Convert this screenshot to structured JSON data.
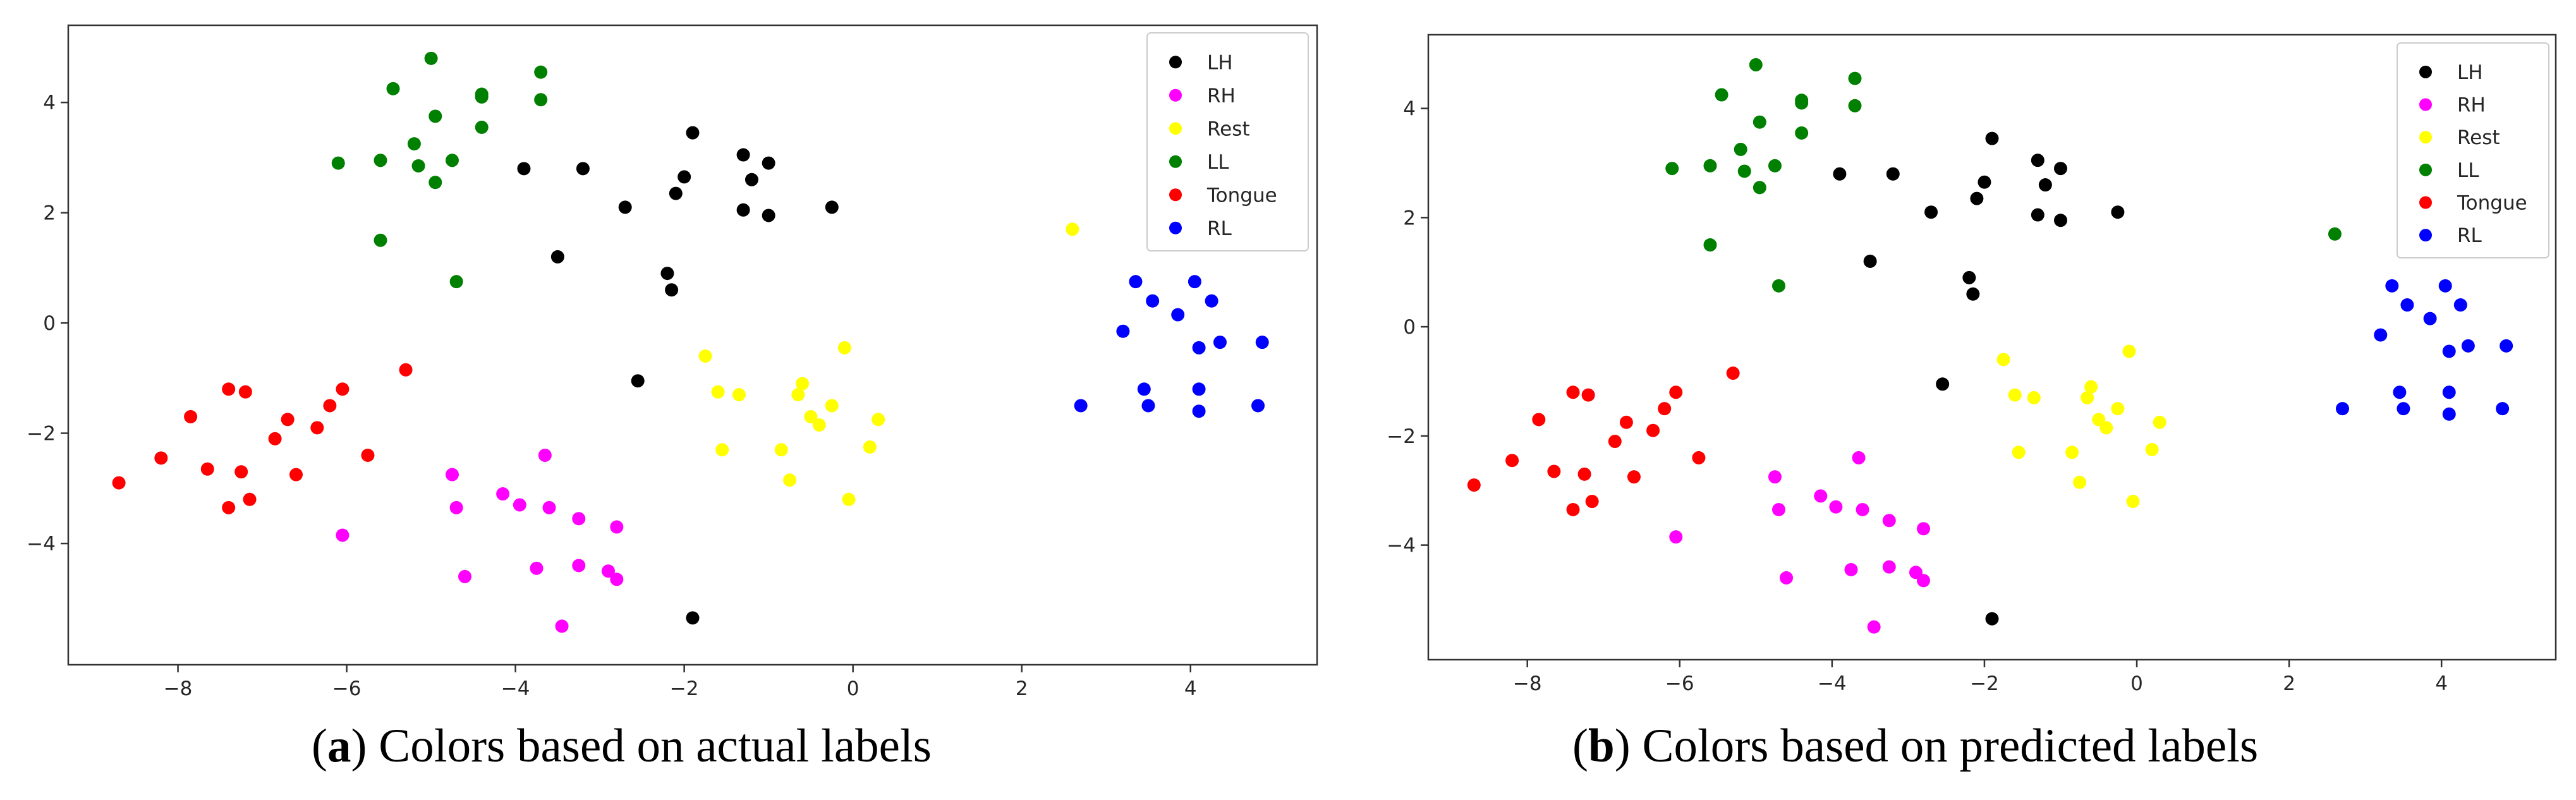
{
  "classes": [
    {
      "name": "LH",
      "color": "#000000"
    },
    {
      "name": "RH",
      "color": "#ff00ff"
    },
    {
      "name": "Rest",
      "color": "#ffff00"
    },
    {
      "name": "LL",
      "color": "#008000"
    },
    {
      "name": "Tongue",
      "color": "#ff0000"
    },
    {
      "name": "RL",
      "color": "#0000ff"
    }
  ],
  "captions": [
    {
      "letter": "a",
      "text": "Colors based on actual labels"
    },
    {
      "letter": "b",
      "text": "Colors based on predicted labels"
    }
  ],
  "chart_data": [
    {
      "type": "scatter",
      "title": "",
      "xlabel": "",
      "ylabel": "",
      "xlim": [
        -9.3,
        5.5
      ],
      "ylim": [
        -6.2,
        5.4
      ],
      "xticks": [
        -8,
        -6,
        -4,
        -2,
        0,
        2,
        4
      ],
      "yticks": [
        -4,
        -2,
        0,
        2,
        4
      ],
      "legend": "top-right",
      "series": [
        {
          "name": "LH",
          "color": "#000000",
          "points": [
            [
              -3.9,
              2.8
            ],
            [
              -3.2,
              2.8
            ],
            [
              -2.7,
              2.1
            ],
            [
              -1.9,
              3.45
            ],
            [
              -2.0,
              2.65
            ],
            [
              -2.1,
              2.35
            ],
            [
              -1.3,
              3.05
            ],
            [
              -1.2,
              2.6
            ],
            [
              -1.3,
              2.05
            ],
            [
              -1.0,
              2.9
            ],
            [
              -1.0,
              1.95
            ],
            [
              -0.25,
              2.1
            ],
            [
              -3.5,
              1.2
            ],
            [
              -2.2,
              0.9
            ],
            [
              -2.15,
              0.6
            ],
            [
              -2.55,
              -1.05
            ],
            [
              -1.9,
              -5.35
            ]
          ]
        },
        {
          "name": "RH",
          "color": "#ff00ff",
          "points": [
            [
              -6.05,
              -3.85
            ],
            [
              -4.75,
              -2.75
            ],
            [
              -4.7,
              -3.35
            ],
            [
              -4.6,
              -4.6
            ],
            [
              -4.15,
              -3.1
            ],
            [
              -3.95,
              -3.3
            ],
            [
              -3.75,
              -4.45
            ],
            [
              -3.65,
              -2.4
            ],
            [
              -3.6,
              -3.35
            ],
            [
              -3.25,
              -3.55
            ],
            [
              -3.25,
              -4.4
            ],
            [
              -3.45,
              -5.5
            ],
            [
              -2.8,
              -3.7
            ],
            [
              -2.9,
              -4.5
            ],
            [
              -2.8,
              -4.65
            ]
          ]
        },
        {
          "name": "Rest",
          "color": "#ffff00",
          "points": [
            [
              -1.75,
              -0.6
            ],
            [
              -1.6,
              -1.25
            ],
            [
              -1.55,
              -2.3
            ],
            [
              -1.35,
              -1.3
            ],
            [
              -0.85,
              -2.3
            ],
            [
              -0.75,
              -2.85
            ],
            [
              -0.65,
              -1.3
            ],
            [
              -0.6,
              -1.1
            ],
            [
              -0.5,
              -1.7
            ],
            [
              -0.4,
              -1.85
            ],
            [
              -0.25,
              -1.5
            ],
            [
              -0.1,
              -0.45
            ],
            [
              -0.05,
              -3.2
            ],
            [
              0.2,
              -2.25
            ],
            [
              0.3,
              -1.75
            ],
            [
              2.6,
              1.7
            ]
          ]
        },
        {
          "name": "LL",
          "color": "#008000",
          "points": [
            [
              -6.1,
              2.9
            ],
            [
              -5.6,
              2.95
            ],
            [
              -5.6,
              1.5
            ],
            [
              -5.45,
              4.25
            ],
            [
              -5.2,
              3.25
            ],
            [
              -5.15,
              2.85
            ],
            [
              -5.0,
              4.8
            ],
            [
              -4.95,
              3.75
            ],
            [
              -4.95,
              2.55
            ],
            [
              -4.75,
              2.95
            ],
            [
              -4.7,
              0.75
            ],
            [
              -4.4,
              4.15
            ],
            [
              -4.4,
              4.1
            ],
            [
              -4.4,
              3.55
            ],
            [
              -3.7,
              4.55
            ],
            [
              -3.7,
              4.05
            ]
          ]
        },
        {
          "name": "Tongue",
          "color": "#ff0000",
          "points": [
            [
              -8.7,
              -2.9
            ],
            [
              -8.2,
              -2.45
            ],
            [
              -7.85,
              -1.7
            ],
            [
              -7.65,
              -2.65
            ],
            [
              -7.4,
              -1.2
            ],
            [
              -7.4,
              -3.35
            ],
            [
              -7.25,
              -2.7
            ],
            [
              -7.2,
              -1.25
            ],
            [
              -7.15,
              -3.2
            ],
            [
              -6.85,
              -2.1
            ],
            [
              -6.7,
              -1.75
            ],
            [
              -6.6,
              -2.75
            ],
            [
              -6.35,
              -1.9
            ],
            [
              -6.2,
              -1.5
            ],
            [
              -6.05,
              -1.2
            ],
            [
              -5.75,
              -2.4
            ],
            [
              -5.3,
              -0.85
            ]
          ]
        },
        {
          "name": "RL",
          "color": "#0000ff",
          "points": [
            [
              2.7,
              -1.5
            ],
            [
              3.2,
              -0.15
            ],
            [
              3.35,
              0.75
            ],
            [
              3.45,
              -1.2
            ],
            [
              3.5,
              -1.5
            ],
            [
              3.55,
              0.4
            ],
            [
              3.85,
              0.15
            ],
            [
              4.05,
              0.75
            ],
            [
              4.1,
              -0.45
            ],
            [
              4.1,
              -1.2
            ],
            [
              4.1,
              -1.6
            ],
            [
              4.25,
              0.4
            ],
            [
              4.35,
              -0.35
            ],
            [
              4.8,
              -1.5
            ],
            [
              4.85,
              -0.35
            ]
          ]
        }
      ]
    },
    {
      "type": "scatter",
      "title": "",
      "xlabel": "",
      "ylabel": "",
      "xlim": [
        -9.3,
        5.5
      ],
      "ylim": [
        -6.1,
        5.35
      ],
      "xticks": [
        -8,
        -6,
        -4,
        -2,
        0,
        2,
        4
      ],
      "yticks": [
        -4,
        -2,
        0,
        2,
        4
      ],
      "legend": "top-right",
      "series": [
        {
          "name": "LH",
          "color": "#000000",
          "points": [
            [
              -3.9,
              2.8
            ],
            [
              -3.2,
              2.8
            ],
            [
              -2.7,
              2.1
            ],
            [
              -1.9,
              3.45
            ],
            [
              -2.0,
              2.65
            ],
            [
              -2.1,
              2.35
            ],
            [
              -1.3,
              3.05
            ],
            [
              -1.2,
              2.6
            ],
            [
              -1.3,
              2.05
            ],
            [
              -1.0,
              2.9
            ],
            [
              -1.0,
              1.95
            ],
            [
              -0.25,
              2.1
            ],
            [
              -3.5,
              1.2
            ],
            [
              -2.2,
              0.9
            ],
            [
              -2.15,
              0.6
            ],
            [
              -2.55,
              -1.05
            ],
            [
              -1.9,
              -5.35
            ]
          ]
        },
        {
          "name": "RH",
          "color": "#ff00ff",
          "points": [
            [
              -6.05,
              -3.85
            ],
            [
              -4.75,
              -2.75
            ],
            [
              -4.7,
              -3.35
            ],
            [
              -4.6,
              -4.6
            ],
            [
              -4.15,
              -3.1
            ],
            [
              -3.95,
              -3.3
            ],
            [
              -3.75,
              -4.45
            ],
            [
              -3.65,
              -2.4
            ],
            [
              -3.6,
              -3.35
            ],
            [
              -3.25,
              -3.55
            ],
            [
              -3.25,
              -4.4
            ],
            [
              -3.45,
              -5.5
            ],
            [
              -2.8,
              -3.7
            ],
            [
              -2.9,
              -4.5
            ],
            [
              -2.8,
              -4.65
            ]
          ]
        },
        {
          "name": "Rest",
          "color": "#ffff00",
          "points": [
            [
              -1.75,
              -0.6
            ],
            [
              -1.6,
              -1.25
            ],
            [
              -1.55,
              -2.3
            ],
            [
              -1.35,
              -1.3
            ],
            [
              -0.85,
              -2.3
            ],
            [
              -0.75,
              -2.85
            ],
            [
              -0.65,
              -1.3
            ],
            [
              -0.6,
              -1.1
            ],
            [
              -0.5,
              -1.7
            ],
            [
              -0.4,
              -1.85
            ],
            [
              -0.25,
              -1.5
            ],
            [
              -0.1,
              -0.45
            ],
            [
              -0.05,
              -3.2
            ],
            [
              0.2,
              -2.25
            ],
            [
              0.3,
              -1.75
            ]
          ]
        },
        {
          "name": "LL",
          "color": "#008000",
          "points": [
            [
              -6.1,
              2.9
            ],
            [
              -5.6,
              2.95
            ],
            [
              -5.6,
              1.5
            ],
            [
              -5.45,
              4.25
            ],
            [
              -5.2,
              3.25
            ],
            [
              -5.15,
              2.85
            ],
            [
              -5.0,
              4.8
            ],
            [
              -4.95,
              3.75
            ],
            [
              -4.95,
              2.55
            ],
            [
              -4.75,
              2.95
            ],
            [
              -4.7,
              0.75
            ],
            [
              -4.4,
              4.15
            ],
            [
              -4.4,
              4.1
            ],
            [
              -4.4,
              3.55
            ],
            [
              -3.7,
              4.55
            ],
            [
              -3.7,
              4.05
            ],
            [
              2.6,
              1.7
            ]
          ]
        },
        {
          "name": "Tongue",
          "color": "#ff0000",
          "points": [
            [
              -8.7,
              -2.9
            ],
            [
              -8.2,
              -2.45
            ],
            [
              -7.85,
              -1.7
            ],
            [
              -7.65,
              -2.65
            ],
            [
              -7.4,
              -1.2
            ],
            [
              -7.4,
              -3.35
            ],
            [
              -7.25,
              -2.7
            ],
            [
              -7.2,
              -1.25
            ],
            [
              -7.15,
              -3.2
            ],
            [
              -6.85,
              -2.1
            ],
            [
              -6.7,
              -1.75
            ],
            [
              -6.6,
              -2.75
            ],
            [
              -6.35,
              -1.9
            ],
            [
              -6.2,
              -1.5
            ],
            [
              -6.05,
              -1.2
            ],
            [
              -5.75,
              -2.4
            ],
            [
              -5.3,
              -0.85
            ]
          ]
        },
        {
          "name": "RL",
          "color": "#0000ff",
          "points": [
            [
              2.7,
              -1.5
            ],
            [
              3.2,
              -0.15
            ],
            [
              3.35,
              0.75
            ],
            [
              3.45,
              -1.2
            ],
            [
              3.5,
              -1.5
            ],
            [
              3.55,
              0.4
            ],
            [
              3.85,
              0.15
            ],
            [
              4.05,
              0.75
            ],
            [
              4.1,
              -0.45
            ],
            [
              4.1,
              -1.2
            ],
            [
              4.1,
              -1.6
            ],
            [
              4.25,
              0.4
            ],
            [
              4.35,
              -0.35
            ],
            [
              4.8,
              -1.5
            ],
            [
              4.85,
              -0.35
            ]
          ]
        }
      ]
    }
  ]
}
